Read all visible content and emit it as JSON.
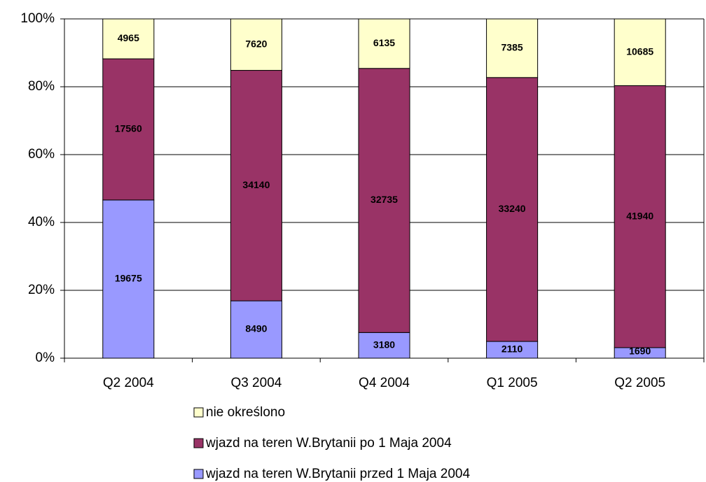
{
  "chart_data": {
    "type": "bar",
    "stacking": "percent",
    "categories": [
      "Q2 2004",
      "Q3 2004",
      "Q4 2004",
      "Q1 2005",
      "Q2 2005"
    ],
    "series": [
      {
        "name": "wjazd na teren W.Brytanii przed 1 Maja 2004",
        "color": "#9999ff",
        "values": [
          19675,
          8490,
          3180,
          2110,
          1690
        ]
      },
      {
        "name": "wjazd na teren W.Brytanii po 1 Maja 2004",
        "color": "#993366",
        "values": [
          17560,
          34140,
          32735,
          33240,
          41940
        ]
      },
      {
        "name": "nie określono",
        "color": "#ffffcc",
        "values": [
          4965,
          7620,
          6135,
          7385,
          10685
        ]
      }
    ],
    "ylim": [
      0,
      100
    ],
    "yticks": [
      {
        "value": 0,
        "label": "0%"
      },
      {
        "value": 20,
        "label": "20%"
      },
      {
        "value": 40,
        "label": "40%"
      },
      {
        "value": 60,
        "label": "60%"
      },
      {
        "value": 80,
        "label": "80%"
      },
      {
        "value": 100,
        "label": "100%"
      }
    ],
    "grid": true,
    "legend": "bottom"
  }
}
